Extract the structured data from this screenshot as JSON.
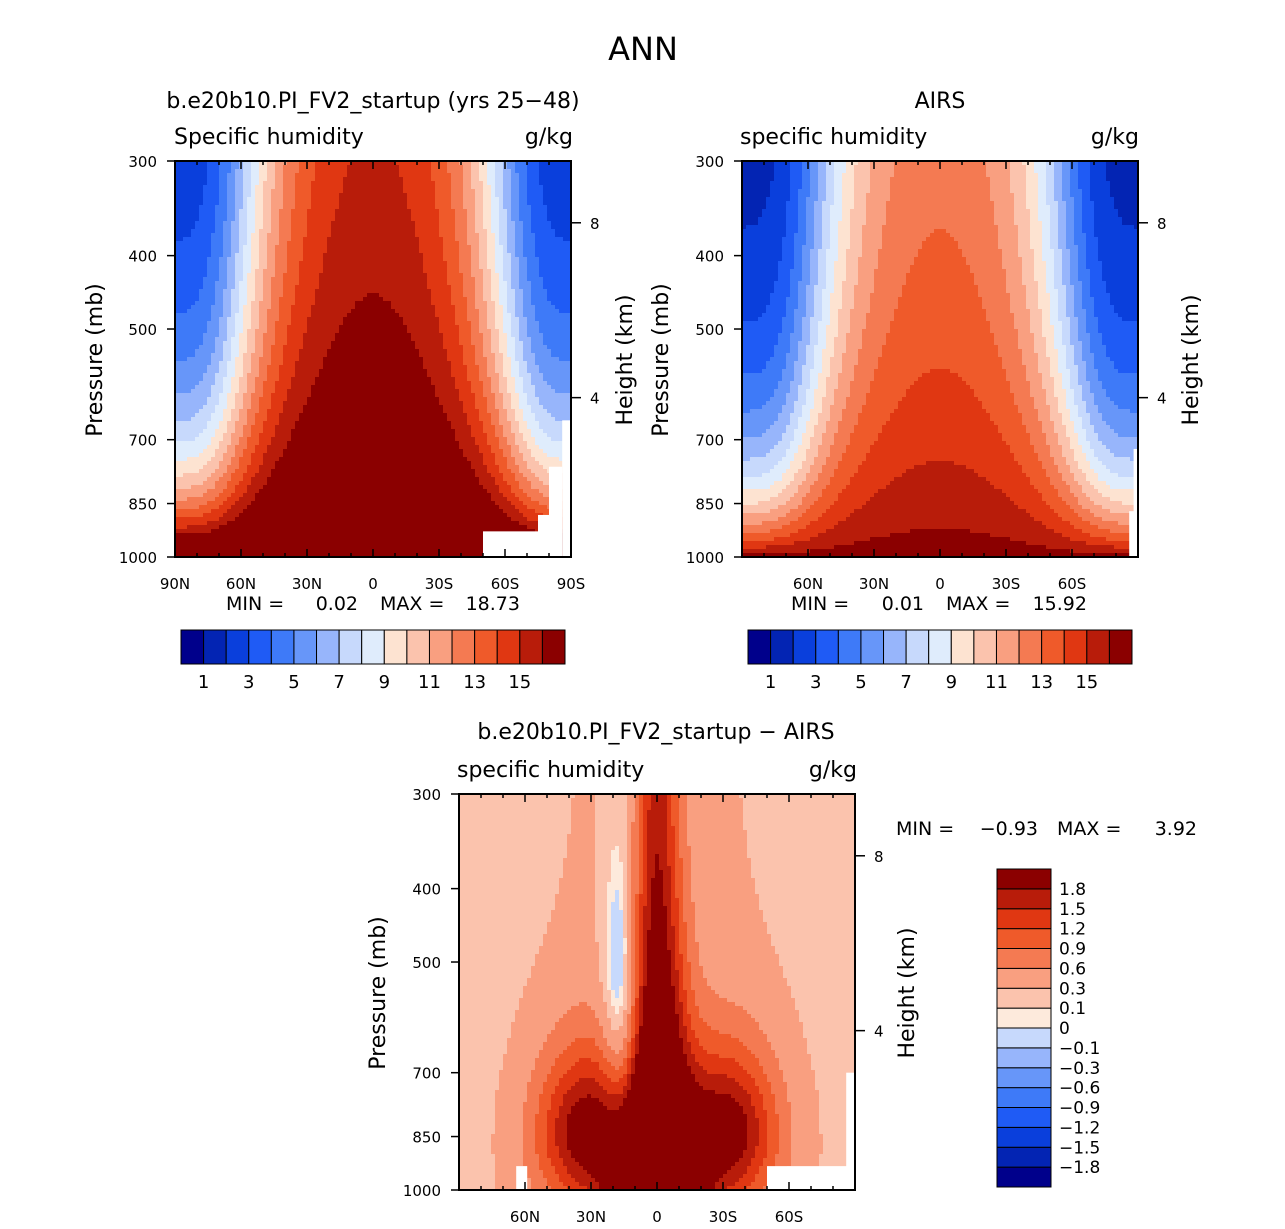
{
  "main_title": "ANN",
  "panels": [
    {
      "title": "b.e20b10.PI_FV2_startup (yrs 25−48)",
      "left_label": "Specific humidity",
      "right_label": "g/kg",
      "ylabel": "Pressure (mb)",
      "ylabel_right": "Height (km)",
      "stats": {
        "min_label": "MIN =",
        "min": "0.02",
        "max_label": "MAX =",
        "max": "18.73"
      }
    },
    {
      "title": "AIRS",
      "left_label": "specific humidity",
      "right_label": "g/kg",
      "ylabel": "Pressure (mb)",
      "ylabel_right": "Height (km)",
      "stats": {
        "min_label": "MIN =",
        "min": "0.01",
        "max_label": "MAX =",
        "max": "15.92"
      }
    },
    {
      "title": "b.e20b10.PI_FV2_startup − AIRS",
      "left_label": "specific humidity",
      "right_label": "g/kg",
      "ylabel": "Pressure (mb)",
      "ylabel_right": "Height (km)",
      "stats": {
        "min_label": "MIN =",
        "min": "−0.93",
        "max_label": "MAX =",
        "max": "3.92"
      }
    }
  ],
  "colorbars": {
    "abs": {
      "colors": [
        "#00008b",
        "#0324b3",
        "#0a3fdc",
        "#1f5bf5",
        "#3e7af8",
        "#6796f9",
        "#97b5fb",
        "#c7d9fc",
        "#dfecfc",
        "#fde3d1",
        "#fbc3ad",
        "#f99f80",
        "#f47a52",
        "#ef5a2a",
        "#e03712",
        "#b81c0a",
        "#8b0000"
      ],
      "labels": [
        "1",
        "3",
        "5",
        "7",
        "9",
        "11",
        "13",
        "15"
      ]
    },
    "diff": {
      "colors": [
        "#00008b",
        "#0324b3",
        "#0a3fdc",
        "#1f5bf5",
        "#3e7af8",
        "#6796f9",
        "#97b5fb",
        "#c7d9fc",
        "#fdeadc",
        "#fbc3ad",
        "#f99f80",
        "#f47a52",
        "#ef5a2a",
        "#e03712",
        "#b81c0a",
        "#8b0000"
      ],
      "labels": [
        "−1.8",
        "−1.5",
        "−1.2",
        "−0.9",
        "−0.6",
        "−0.3",
        "−0.1",
        "0",
        "0.1",
        "0.3",
        "0.6",
        "0.9",
        "1.2",
        "1.5",
        "1.8"
      ]
    }
  },
  "chart_data": [
    {
      "type": "heatmap",
      "title": "b.e20b10.PI_FV2_startup (yrs 25−48)",
      "variable": "Specific humidity",
      "units": "g/kg",
      "xlabel": "",
      "ylabel": "Pressure (mb)",
      "ylabel_right": "Height (km)",
      "x_ticks": [
        "90N",
        "60N",
        "30N",
        "0",
        "30S",
        "60S",
        "90S"
      ],
      "xlim": [
        90,
        -90
      ],
      "y_ticks": [
        300,
        400,
        500,
        700,
        850,
        1000
      ],
      "ylim": [
        1000,
        300
      ],
      "y_scale": "log",
      "right_axis_ticks": [
        "8",
        "4"
      ],
      "contour_levels": [
        1,
        2,
        3,
        4,
        5,
        6,
        7,
        8,
        9,
        10,
        11,
        12,
        13,
        14,
        15,
        16
      ],
      "min": 0.02,
      "max": 18.73,
      "colorbar_labels": [
        "1",
        "3",
        "5",
        "7",
        "9",
        "11",
        "13",
        "15"
      ]
    },
    {
      "type": "heatmap",
      "title": "AIRS",
      "variable": "specific humidity",
      "units": "g/kg",
      "xlabel": "",
      "ylabel": "Pressure (mb)",
      "ylabel_right": "Height (km)",
      "x_ticks": [
        "60N",
        "30N",
        "0",
        "30S",
        "60S"
      ],
      "xlim": [
        90,
        -90
      ],
      "y_ticks": [
        300,
        400,
        500,
        700,
        850,
        1000
      ],
      "ylim": [
        1000,
        300
      ],
      "y_scale": "log",
      "right_axis_ticks": [
        "8",
        "4"
      ],
      "contour_levels": [
        1,
        2,
        3,
        4,
        5,
        6,
        7,
        8,
        9,
        10,
        11,
        12,
        13,
        14,
        15,
        16
      ],
      "min": 0.01,
      "max": 15.92,
      "colorbar_labels": [
        "1",
        "3",
        "5",
        "7",
        "9",
        "11",
        "13",
        "15"
      ]
    },
    {
      "type": "heatmap",
      "title": "b.e20b10.PI_FV2_startup − AIRS",
      "variable": "specific humidity",
      "units": "g/kg",
      "xlabel": "",
      "ylabel": "Pressure (mb)",
      "ylabel_right": "Height (km)",
      "x_ticks": [
        "60N",
        "30N",
        "0",
        "30S",
        "60S"
      ],
      "xlim": [
        90,
        -90
      ],
      "y_ticks": [
        300,
        400,
        500,
        700,
        850,
        1000
      ],
      "ylim": [
        1000,
        300
      ],
      "y_scale": "log",
      "right_axis_ticks": [
        "8",
        "4"
      ],
      "contour_levels": [
        -1.8,
        -1.5,
        -1.2,
        -0.9,
        -0.6,
        -0.3,
        -0.1,
        0,
        0.1,
        0.3,
        0.6,
        0.9,
        1.2,
        1.5,
        1.8
      ],
      "min": -0.93,
      "max": 3.92,
      "colorbar_labels": [
        "−1.8",
        "−1.5",
        "−1.2",
        "−0.9",
        "−0.6",
        "−0.3",
        "−0.1",
        "0",
        "0.1",
        "0.3",
        "0.6",
        "0.9",
        "1.2",
        "1.5",
        "1.8"
      ]
    }
  ]
}
